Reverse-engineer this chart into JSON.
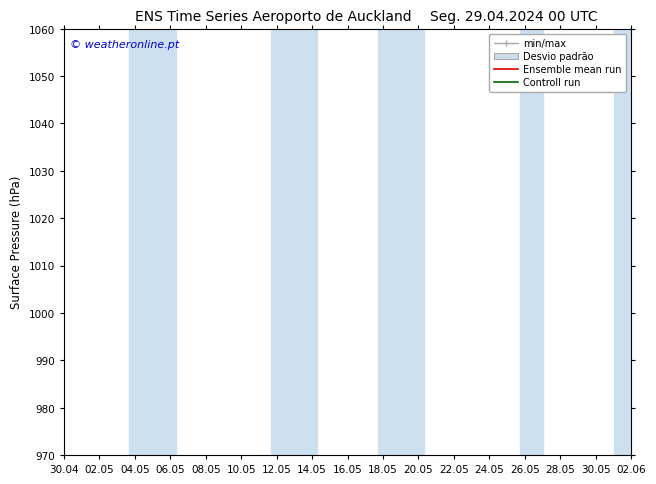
{
  "title_left": "ENS Time Series Aeroporto de Auckland",
  "title_right": "Seg. 29.04.2024 00 UTC",
  "ylabel": "Surface Pressure (hPa)",
  "watermark": "© weatheronline.pt",
  "watermark_color": "#0000cc",
  "ylim": [
    970,
    1060
  ],
  "yticks": [
    970,
    980,
    990,
    1000,
    1010,
    1020,
    1030,
    1040,
    1050,
    1060
  ],
  "xtick_labels": [
    "30.04",
    "02.05",
    "04.05",
    "06.05",
    "08.05",
    "10.05",
    "12.05",
    "14.05",
    "16.05",
    "18.05",
    "20.05",
    "22.05",
    "24.05",
    "26.05",
    "28.05",
    "30.05",
    "02.06"
  ],
  "bg_color": "#ffffff",
  "plot_bg_color": "#ffffff",
  "band_color": "#cce0f0",
  "legend_minmax_color": "#aaaaaa",
  "legend_desvio_color": "#ccdde8",
  "legend_ensemble_color": "#dd0000",
  "legend_control_color": "#006600",
  "title_fontsize": 10,
  "tick_fontsize": 7.5,
  "ylabel_fontsize": 8.5,
  "watermark_fontsize": 8,
  "legend_fontsize": 7
}
